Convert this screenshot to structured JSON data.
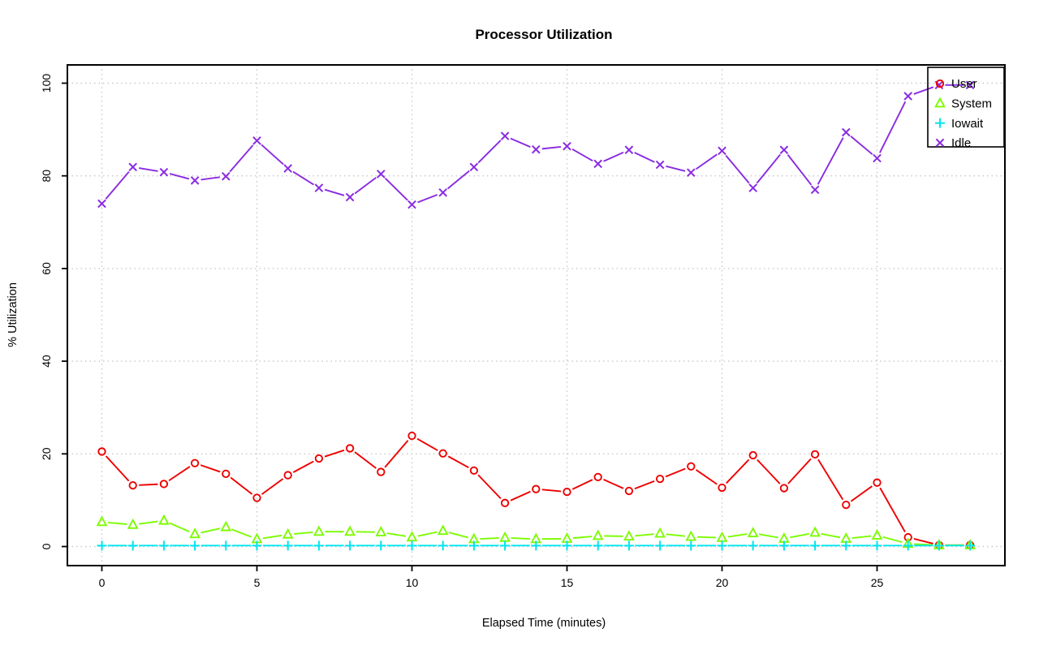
{
  "chart_data": {
    "type": "line",
    "title": "Processor Utilization",
    "xlabel": "Elapsed Time (minutes)",
    "ylabel": "% Utilization",
    "x": [
      0,
      1,
      2,
      3,
      4,
      5,
      6,
      7,
      8,
      9,
      10,
      11,
      12,
      13,
      14,
      15,
      16,
      17,
      18,
      19,
      20,
      21,
      22,
      23,
      24,
      25,
      26,
      27,
      28
    ],
    "xticks": [
      0,
      5,
      10,
      15,
      20,
      25
    ],
    "yticks": [
      0,
      20,
      40,
      60,
      80,
      100
    ],
    "xlim": [
      -1.1,
      29.1
    ],
    "ylim": [
      -4,
      104
    ],
    "grid": true,
    "grid_style": "dotted",
    "grid_color": "#c8c8c8",
    "legend_position": "top-right",
    "legend_transparent": true,
    "series": [
      {
        "name": "User",
        "marker": "circle",
        "color": "#ee0000",
        "values": [
          20.5,
          13.2,
          13.5,
          18.0,
          15.7,
          10.5,
          15.4,
          19.0,
          21.2,
          16.1,
          23.9,
          20.1,
          16.4,
          9.4,
          12.4,
          11.8,
          15.0,
          12.0,
          14.6,
          17.3,
          12.7,
          19.7,
          12.6,
          19.9,
          9.0,
          13.8,
          2.0,
          0.3,
          0.3
        ]
      },
      {
        "name": "System",
        "marker": "triangle",
        "color": "#7cfc00",
        "values": [
          5.3,
          4.7,
          5.6,
          2.7,
          4.2,
          1.6,
          2.6,
          3.2,
          3.2,
          3.1,
          2.0,
          3.4,
          1.6,
          1.9,
          1.6,
          1.7,
          2.3,
          2.2,
          2.8,
          2.1,
          1.9,
          2.9,
          1.7,
          3.0,
          1.7,
          2.4,
          0.6,
          0.3,
          0.3
        ]
      },
      {
        "name": "Iowait",
        "marker": "plus",
        "color": "#00e5ee",
        "values": [
          0.2,
          0.2,
          0.2,
          0.2,
          0.2,
          0.2,
          0.2,
          0.2,
          0.2,
          0.2,
          0.2,
          0.2,
          0.2,
          0.2,
          0.2,
          0.2,
          0.2,
          0.2,
          0.2,
          0.2,
          0.2,
          0.2,
          0.2,
          0.2,
          0.2,
          0.2,
          0.2,
          0.2,
          0.2
        ]
      },
      {
        "name": "Idle",
        "marker": "x",
        "color": "#8a2be2",
        "values": [
          74.0,
          81.9,
          80.8,
          79.0,
          79.9,
          87.6,
          81.6,
          77.4,
          75.4,
          80.4,
          73.8,
          76.4,
          81.9,
          88.6,
          85.7,
          86.4,
          82.6,
          85.6,
          82.4,
          80.7,
          85.4,
          77.4,
          85.6,
          77.0,
          89.4,
          83.8,
          97.2,
          99.6,
          99.6
        ]
      }
    ]
  }
}
